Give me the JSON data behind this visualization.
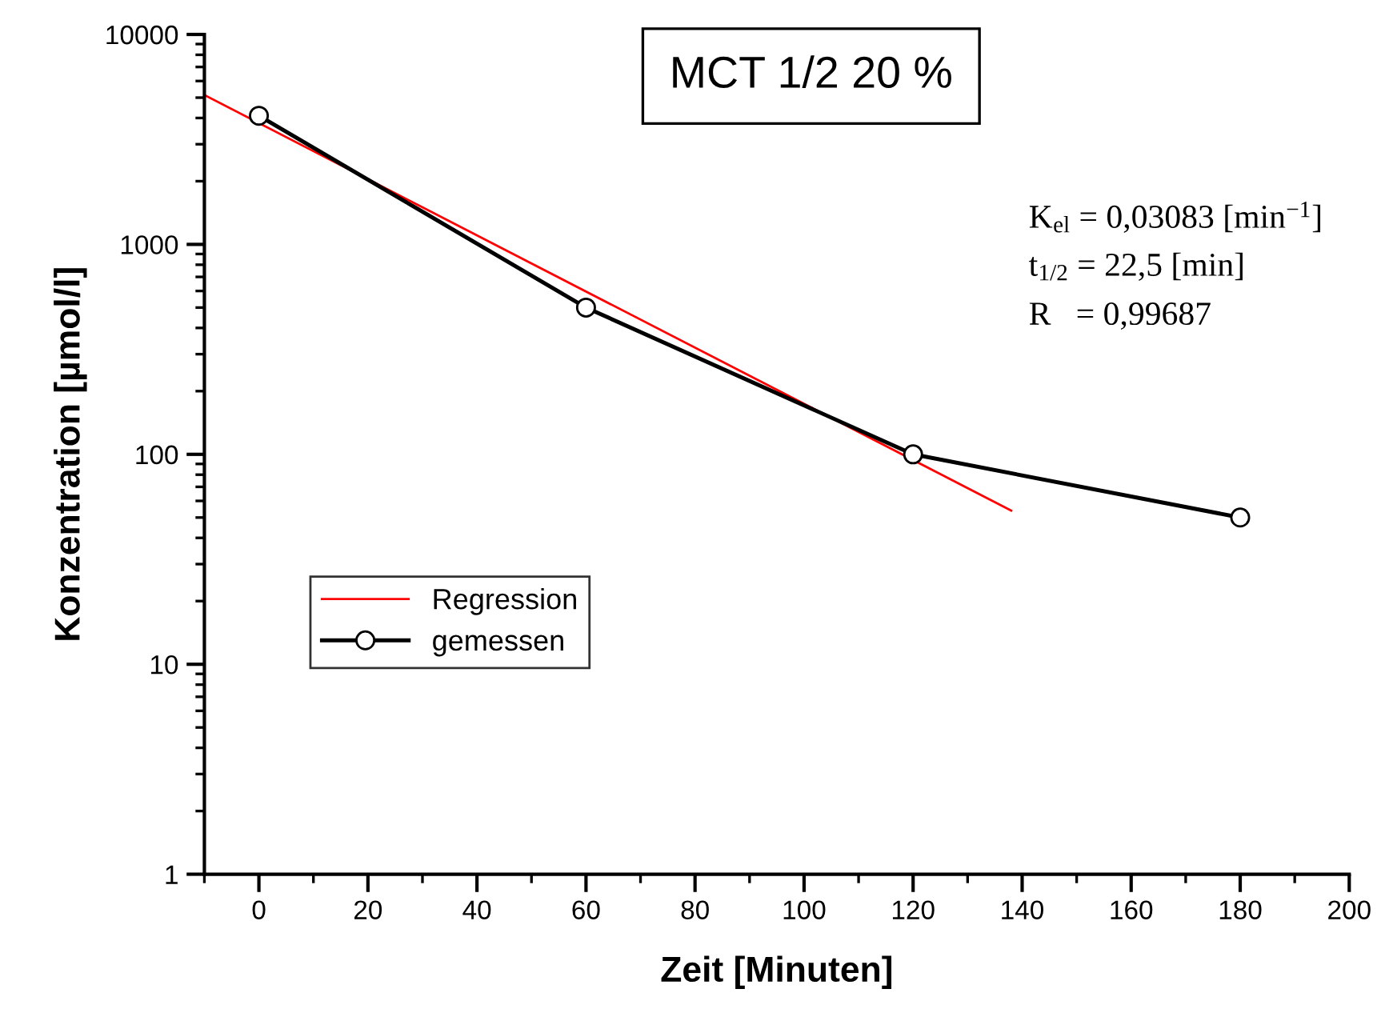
{
  "chart_data": {
    "type": "line",
    "title": "MCT 1/2 20 %",
    "xlabel": "Zeit [Minuten]",
    "ylabel": "Konzentration [µmol/l]",
    "series": [
      {
        "name": "Regression",
        "color": "#ff0000",
        "x": [
          -10,
          138
        ],
        "values": [
          5150,
          54
        ],
        "marker": "none"
      },
      {
        "name": "gemessen",
        "color": "#000000",
        "x": [
          0,
          60,
          120,
          180
        ],
        "values": [
          4100,
          500,
          100,
          50
        ],
        "marker": "circle"
      }
    ],
    "annotations": [
      "K$_{el}$ = 0,03083 [min$^{−1}$]",
      "t$_{1/2}$ = 22,5 [min]",
      "R   = 0,99687"
    ],
    "log": "y",
    "xlim": [
      -10,
      200
    ],
    "ylim": [
      1,
      10000
    ],
    "xticks": [
      0,
      20,
      40,
      60,
      80,
      100,
      120,
      140,
      160,
      180,
      200
    ],
    "yticks": [
      1,
      10,
      100,
      1000,
      10000
    ],
    "grid": false,
    "legend": "left",
    "line_style": "solid"
  }
}
